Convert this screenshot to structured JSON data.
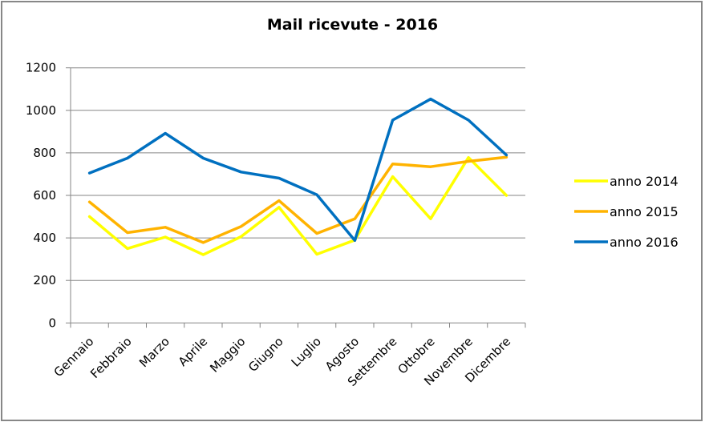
{
  "chart_data": {
    "type": "line",
    "title": "Mail ricevute - 2016",
    "xlabel": "",
    "ylabel": "",
    "ylim": [
      0,
      1200
    ],
    "yticks": [
      0,
      200,
      400,
      600,
      800,
      1000,
      1200
    ],
    "grid": true,
    "legend_position": "right",
    "categories": [
      "Gennaio",
      "Febbraio",
      "Marzo",
      "Aprile",
      "Maggio",
      "Giugno",
      "Luglio",
      "Agosto",
      "Settembre",
      "Ottobre",
      "Novembre",
      "Dicembre"
    ],
    "series": [
      {
        "name": "anno 2014",
        "color": "#FFFF00",
        "values": [
          500,
          350,
          404,
          321,
          406,
          544,
          323,
          390,
          688,
          490,
          778,
          600
        ]
      },
      {
        "name": "anno 2015",
        "color": "#FFB300",
        "values": [
          569,
          425,
          450,
          378,
          454,
          575,
          421,
          490,
          748,
          735,
          760,
          780
        ]
      },
      {
        "name": "anno 2016",
        "color": "#0070C0",
        "values": [
          705,
          775,
          892,
          775,
          710,
          681,
          603,
          388,
          954,
          1053,
          954,
          790
        ]
      }
    ]
  }
}
